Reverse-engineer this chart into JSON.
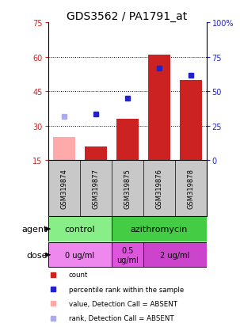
{
  "title": "GDS3562 / PA1791_at",
  "samples": [
    "GSM319874",
    "GSM319877",
    "GSM319875",
    "GSM319876",
    "GSM319878"
  ],
  "bar_values": [
    25,
    21,
    33,
    61,
    50
  ],
  "bar_colors": [
    "#ffaaaa",
    "#cc2222",
    "#cc2222",
    "#cc2222",
    "#cc2222"
  ],
  "dot_values": [
    34,
    35,
    42,
    55,
    52
  ],
  "dot_colors": [
    "#aaaaee",
    "#2222cc",
    "#2222cc",
    "#2222cc",
    "#2222cc"
  ],
  "ylim_left": [
    15,
    75
  ],
  "ylim_right": [
    0,
    100
  ],
  "yticks_left": [
    15,
    30,
    45,
    60,
    75
  ],
  "yticks_right": [
    0,
    25,
    50,
    75,
    100
  ],
  "ytick_labels_left": [
    "15",
    "30",
    "45",
    "60",
    "75"
  ],
  "ytick_labels_right": [
    "0",
    "25",
    "50",
    "75",
    "100%"
  ],
  "gridlines_at": [
    30,
    45,
    60
  ],
  "agent_groups": [
    {
      "label": "control",
      "span": [
        0,
        2
      ],
      "color": "#88ee88"
    },
    {
      "label": "azithromycin",
      "span": [
        2,
        5
      ],
      "color": "#44cc44"
    }
  ],
  "dose_groups": [
    {
      "label": "0 ug/ml",
      "span": [
        0,
        2
      ],
      "color": "#ee88ee"
    },
    {
      "label": "0.5\nug/ml",
      "span": [
        2,
        3
      ],
      "color": "#dd55dd"
    },
    {
      "label": "2 ug/ml",
      "span": [
        3,
        5
      ],
      "color": "#cc44cc"
    }
  ],
  "legend_items": [
    {
      "label": "count",
      "color": "#cc2222"
    },
    {
      "label": "percentile rank within the sample",
      "color": "#2222cc"
    },
    {
      "label": "value, Detection Call = ABSENT",
      "color": "#ffaaaa"
    },
    {
      "label": "rank, Detection Call = ABSENT",
      "color": "#aaaaee"
    }
  ],
  "left_axis_color": "#cc2222",
  "right_axis_color": "#2222cc",
  "bar_width": 0.7,
  "agent_label": "agent",
  "dose_label": "dose",
  "bg_color": "#ffffff",
  "plot_bg_color": "#ffffff",
  "title_fontsize": 10,
  "tick_fontsize": 7,
  "label_fontsize": 8,
  "sample_fontsize": 6
}
